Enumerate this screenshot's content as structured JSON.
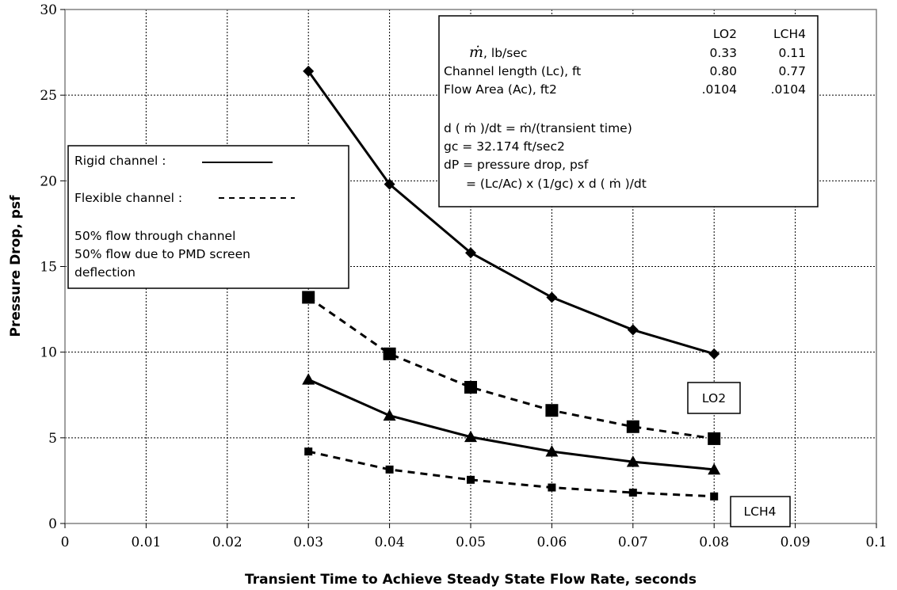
{
  "chart_data": {
    "type": "line",
    "xlabel": "Transient Time to Achieve Steady State Flow Rate, seconds",
    "ylabel": "Pressure Drop, psf",
    "xlim": [
      0,
      0.1
    ],
    "ylim": [
      0,
      30
    ],
    "x_ticks": [
      "0",
      "0.01",
      "0.02",
      "0.03",
      "0.04",
      "0.05",
      "0.06",
      "0.07",
      "0.08",
      "0.09",
      "0.1"
    ],
    "y_ticks": [
      "0",
      "5",
      "10",
      "15",
      "20",
      "25",
      "30"
    ],
    "grid": true,
    "x": [
      0.03,
      0.04,
      0.05,
      0.06,
      0.07,
      0.08
    ],
    "series": [
      {
        "values": [
          26.4,
          19.8,
          15.8,
          13.2,
          11.3,
          9.9
        ],
        "line": "solid",
        "marker": "diamond"
      },
      {
        "values": [
          13.2,
          9.9,
          7.95,
          6.6,
          5.65,
          4.95
        ],
        "line": "dashed",
        "marker": "square"
      },
      {
        "values": [
          8.4,
          6.3,
          5.05,
          4.2,
          3.6,
          3.15
        ],
        "line": "solid",
        "marker": "triangle"
      },
      {
        "values": [
          4.2,
          3.15,
          2.55,
          2.1,
          1.8,
          1.58
        ],
        "line": "dashed",
        "marker": "small-square"
      }
    ],
    "annotations": [
      {
        "text": "LO2",
        "x": 0.0835,
        "y": 7.3
      },
      {
        "text": "LCH4",
        "x": 0.087,
        "y": 2.0
      }
    ],
    "legend": {
      "rigid_label": "Rigid channel :",
      "flexible_label": "Flexible channel :",
      "note_lines": [
        "50% flow through channel",
        "50% flow due to PMD screen",
        "deflection"
      ]
    },
    "info_box": {
      "col_headers": [
        "LO2",
        "LCH4"
      ],
      "rows": [
        {
          "label": "ṁ, lb/sec",
          "lo2": "0.33",
          "lch4": "0.11"
        },
        {
          "label": "Channel length (Lc), ft",
          "lo2": "0.80",
          "lch4": "0.77"
        },
        {
          "label": "Flow Area (Ac), ft2",
          "lo2": ".0104",
          "lch4": ".0104"
        }
      ],
      "formula_lines": [
        "d ( ṁ )/dt =  ṁ/(transient time)",
        "gc = 32.174 ft/sec2",
        "dP = pressure drop, psf",
        "= (Lc/Ac) x (1/gc) x d ( ṁ )/dt"
      ]
    }
  }
}
